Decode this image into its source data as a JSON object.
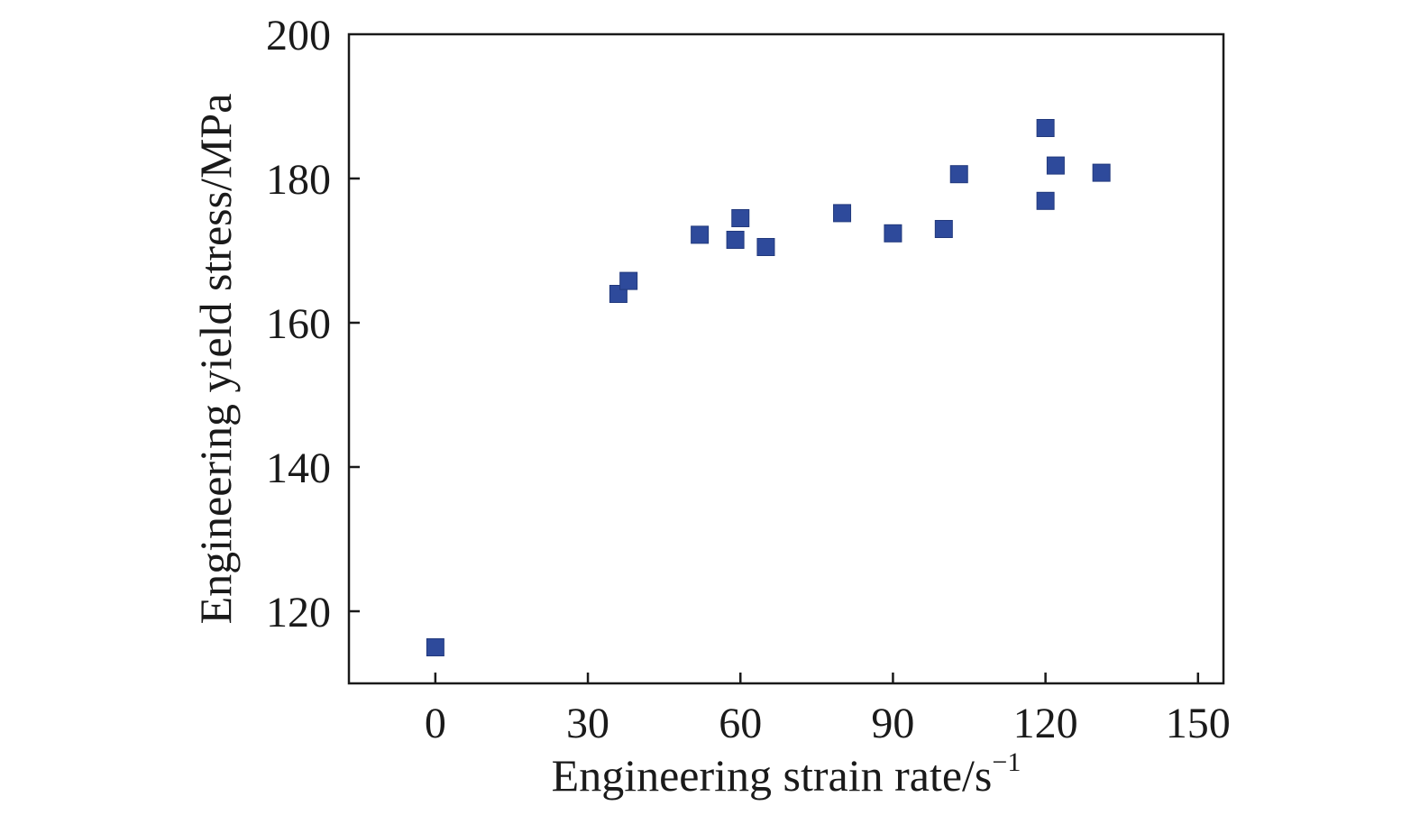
{
  "chart_data": {
    "type": "scatter",
    "title": "",
    "xlabel": "Engineering strain rate/s",
    "xlabel_superscript": "−1",
    "ylabel": "Engineering yield stress/MPa",
    "xlim": [
      -17,
      155
    ],
    "ylim": [
      110,
      200
    ],
    "xticks": [
      0,
      30,
      60,
      90,
      120,
      150
    ],
    "yticks": [
      120,
      140,
      160,
      180,
      200
    ],
    "grid": false,
    "legend": "none",
    "marker": "square",
    "marker_color": "#2E4A9B",
    "series": [
      {
        "points": [
          {
            "x": 0,
            "y": 115
          },
          {
            "x": 36,
            "y": 164
          },
          {
            "x": 38,
            "y": 165.8
          },
          {
            "x": 52,
            "y": 172.2
          },
          {
            "x": 59,
            "y": 171.5
          },
          {
            "x": 60,
            "y": 174.5
          },
          {
            "x": 65,
            "y": 170.5
          },
          {
            "x": 80,
            "y": 175.2
          },
          {
            "x": 90,
            "y": 172.4
          },
          {
            "x": 100,
            "y": 173
          },
          {
            "x": 103,
            "y": 180.6
          },
          {
            "x": 120,
            "y": 187
          },
          {
            "x": 120,
            "y": 176.9
          },
          {
            "x": 122,
            "y": 181.8
          },
          {
            "x": 131,
            "y": 180.8
          }
        ]
      }
    ]
  }
}
